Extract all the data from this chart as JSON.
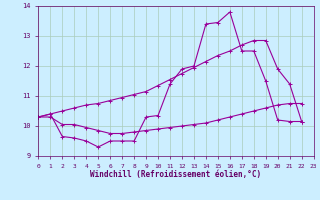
{
  "xlabel": "Windchill (Refroidissement éolien,°C)",
  "background_color": "#cceeff",
  "grid_color": "#aaccbb",
  "line_color": "#990099",
  "spine_color": "#660066",
  "xlim": [
    0,
    23
  ],
  "ylim": [
    9,
    14
  ],
  "yticks": [
    9,
    10,
    11,
    12,
    13,
    14
  ],
  "xticks": [
    0,
    1,
    2,
    3,
    4,
    5,
    6,
    7,
    8,
    9,
    10,
    11,
    12,
    13,
    14,
    15,
    16,
    17,
    18,
    19,
    20,
    21,
    22,
    23
  ],
  "line1_x": [
    0,
    1,
    2,
    3,
    4,
    5,
    6,
    7,
    8,
    9,
    10,
    11,
    12,
    13,
    14,
    15,
    16,
    17,
    18,
    19,
    20,
    21,
    22
  ],
  "line1_y": [
    10.3,
    10.4,
    9.65,
    9.6,
    9.5,
    9.3,
    9.5,
    9.5,
    9.5,
    10.3,
    10.35,
    11.4,
    11.9,
    12.0,
    13.4,
    13.45,
    13.8,
    12.5,
    12.5,
    11.5,
    10.2,
    10.15,
    10.15
  ],
  "line2_x": [
    0,
    1,
    2,
    3,
    4,
    5,
    6,
    7,
    8,
    9,
    10,
    11,
    12,
    13,
    14,
    15,
    16,
    17,
    18,
    19,
    20,
    21,
    22
  ],
  "line2_y": [
    10.3,
    10.3,
    10.05,
    10.05,
    9.95,
    9.85,
    9.75,
    9.75,
    9.8,
    9.85,
    9.9,
    9.95,
    10.0,
    10.05,
    10.1,
    10.2,
    10.3,
    10.4,
    10.5,
    10.6,
    10.7,
    10.75,
    10.75
  ],
  "line3_x": [
    0,
    1,
    2,
    3,
    4,
    5,
    6,
    7,
    8,
    9,
    10,
    11,
    12,
    13,
    14,
    15,
    16,
    17,
    18,
    19,
    20,
    21,
    22
  ],
  "line3_y": [
    10.3,
    10.4,
    10.5,
    10.6,
    10.7,
    10.75,
    10.85,
    10.95,
    11.05,
    11.15,
    11.35,
    11.55,
    11.75,
    11.95,
    12.15,
    12.35,
    12.5,
    12.7,
    12.85,
    12.85,
    11.9,
    11.4,
    10.15
  ]
}
